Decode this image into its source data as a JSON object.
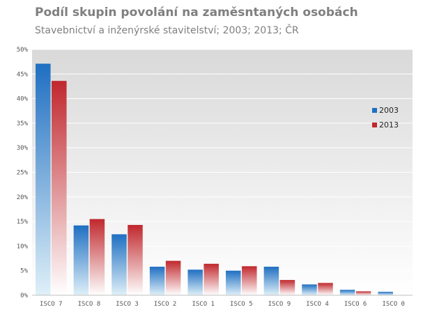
{
  "chart_data": {
    "type": "bar",
    "title": "Podíl skupin povolání na zaměsntaných osobách",
    "subtitle": "Stavebnictví a inženýrské stavitelství; 2003; 2013; ČR",
    "categories": [
      "ISCO 7",
      "ISCO 8",
      "ISCO 3",
      "ISCO 2",
      "ISCO 1",
      "ISCO 5",
      "ISCO 9",
      "ISCO 4",
      "ISCO 6",
      "ISCO 0"
    ],
    "series": [
      {
        "name": "2003",
        "color": "#1f6fc2",
        "values": [
          47.1,
          14.2,
          12.4,
          5.8,
          5.2,
          5.0,
          5.8,
          2.2,
          1.1,
          0.7
        ]
      },
      {
        "name": "2013",
        "color": "#c0282d",
        "values": [
          43.6,
          15.5,
          14.3,
          7.0,
          6.4,
          5.9,
          3.1,
          2.5,
          0.8,
          0.0
        ]
      }
    ],
    "ylim": [
      0,
      50
    ],
    "yticks": [
      0,
      5,
      10,
      15,
      20,
      25,
      30,
      35,
      40,
      45,
      50
    ],
    "ytick_labels": [
      "0%",
      "5%",
      "10%",
      "15%",
      "20%",
      "25%",
      "30%",
      "35%",
      "40%",
      "45%",
      "50%"
    ],
    "legend_position": "right",
    "grid": true
  }
}
